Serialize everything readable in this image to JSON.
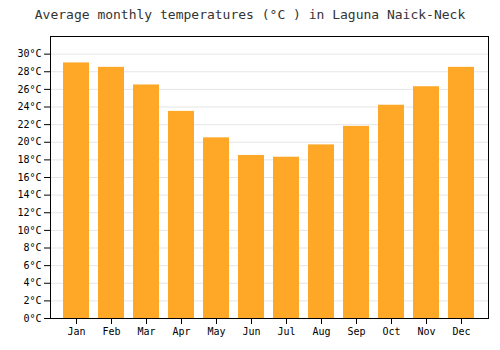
{
  "chart_data": {
    "type": "bar",
    "title": "Average monthly temperatures (°C ) in Laguna Naick-Neck",
    "categories": [
      "Jan",
      "Feb",
      "Mar",
      "Apr",
      "May",
      "Jun",
      "Jul",
      "Aug",
      "Sep",
      "Oct",
      "Nov",
      "Dec"
    ],
    "values": [
      29.0,
      28.5,
      26.5,
      23.5,
      20.5,
      18.5,
      18.3,
      19.7,
      21.8,
      24.2,
      26.3,
      28.5
    ],
    "color": "#FFA726",
    "ylim": [
      0,
      32
    ],
    "yticks": [
      {
        "value": 0,
        "label": "0°C"
      },
      {
        "value": 2,
        "label": "2°C"
      },
      {
        "value": 4,
        "label": "4°C"
      },
      {
        "value": 6,
        "label": "6°C"
      },
      {
        "value": 8,
        "label": "8°C"
      },
      {
        "value": 10,
        "label": "10°C"
      },
      {
        "value": 12,
        "label": "12°C"
      },
      {
        "value": 14,
        "label": "14°C"
      },
      {
        "value": 16,
        "label": "16°C"
      },
      {
        "value": 18,
        "label": "18°C"
      },
      {
        "value": 20,
        "label": "20°C"
      },
      {
        "value": 22,
        "label": "22°C"
      },
      {
        "value": 24,
        "label": "24°C"
      },
      {
        "value": 26,
        "label": "26°C"
      },
      {
        "value": 28,
        "label": "28°C"
      },
      {
        "value": 30,
        "label": "30°C"
      }
    ],
    "grid": true
  }
}
